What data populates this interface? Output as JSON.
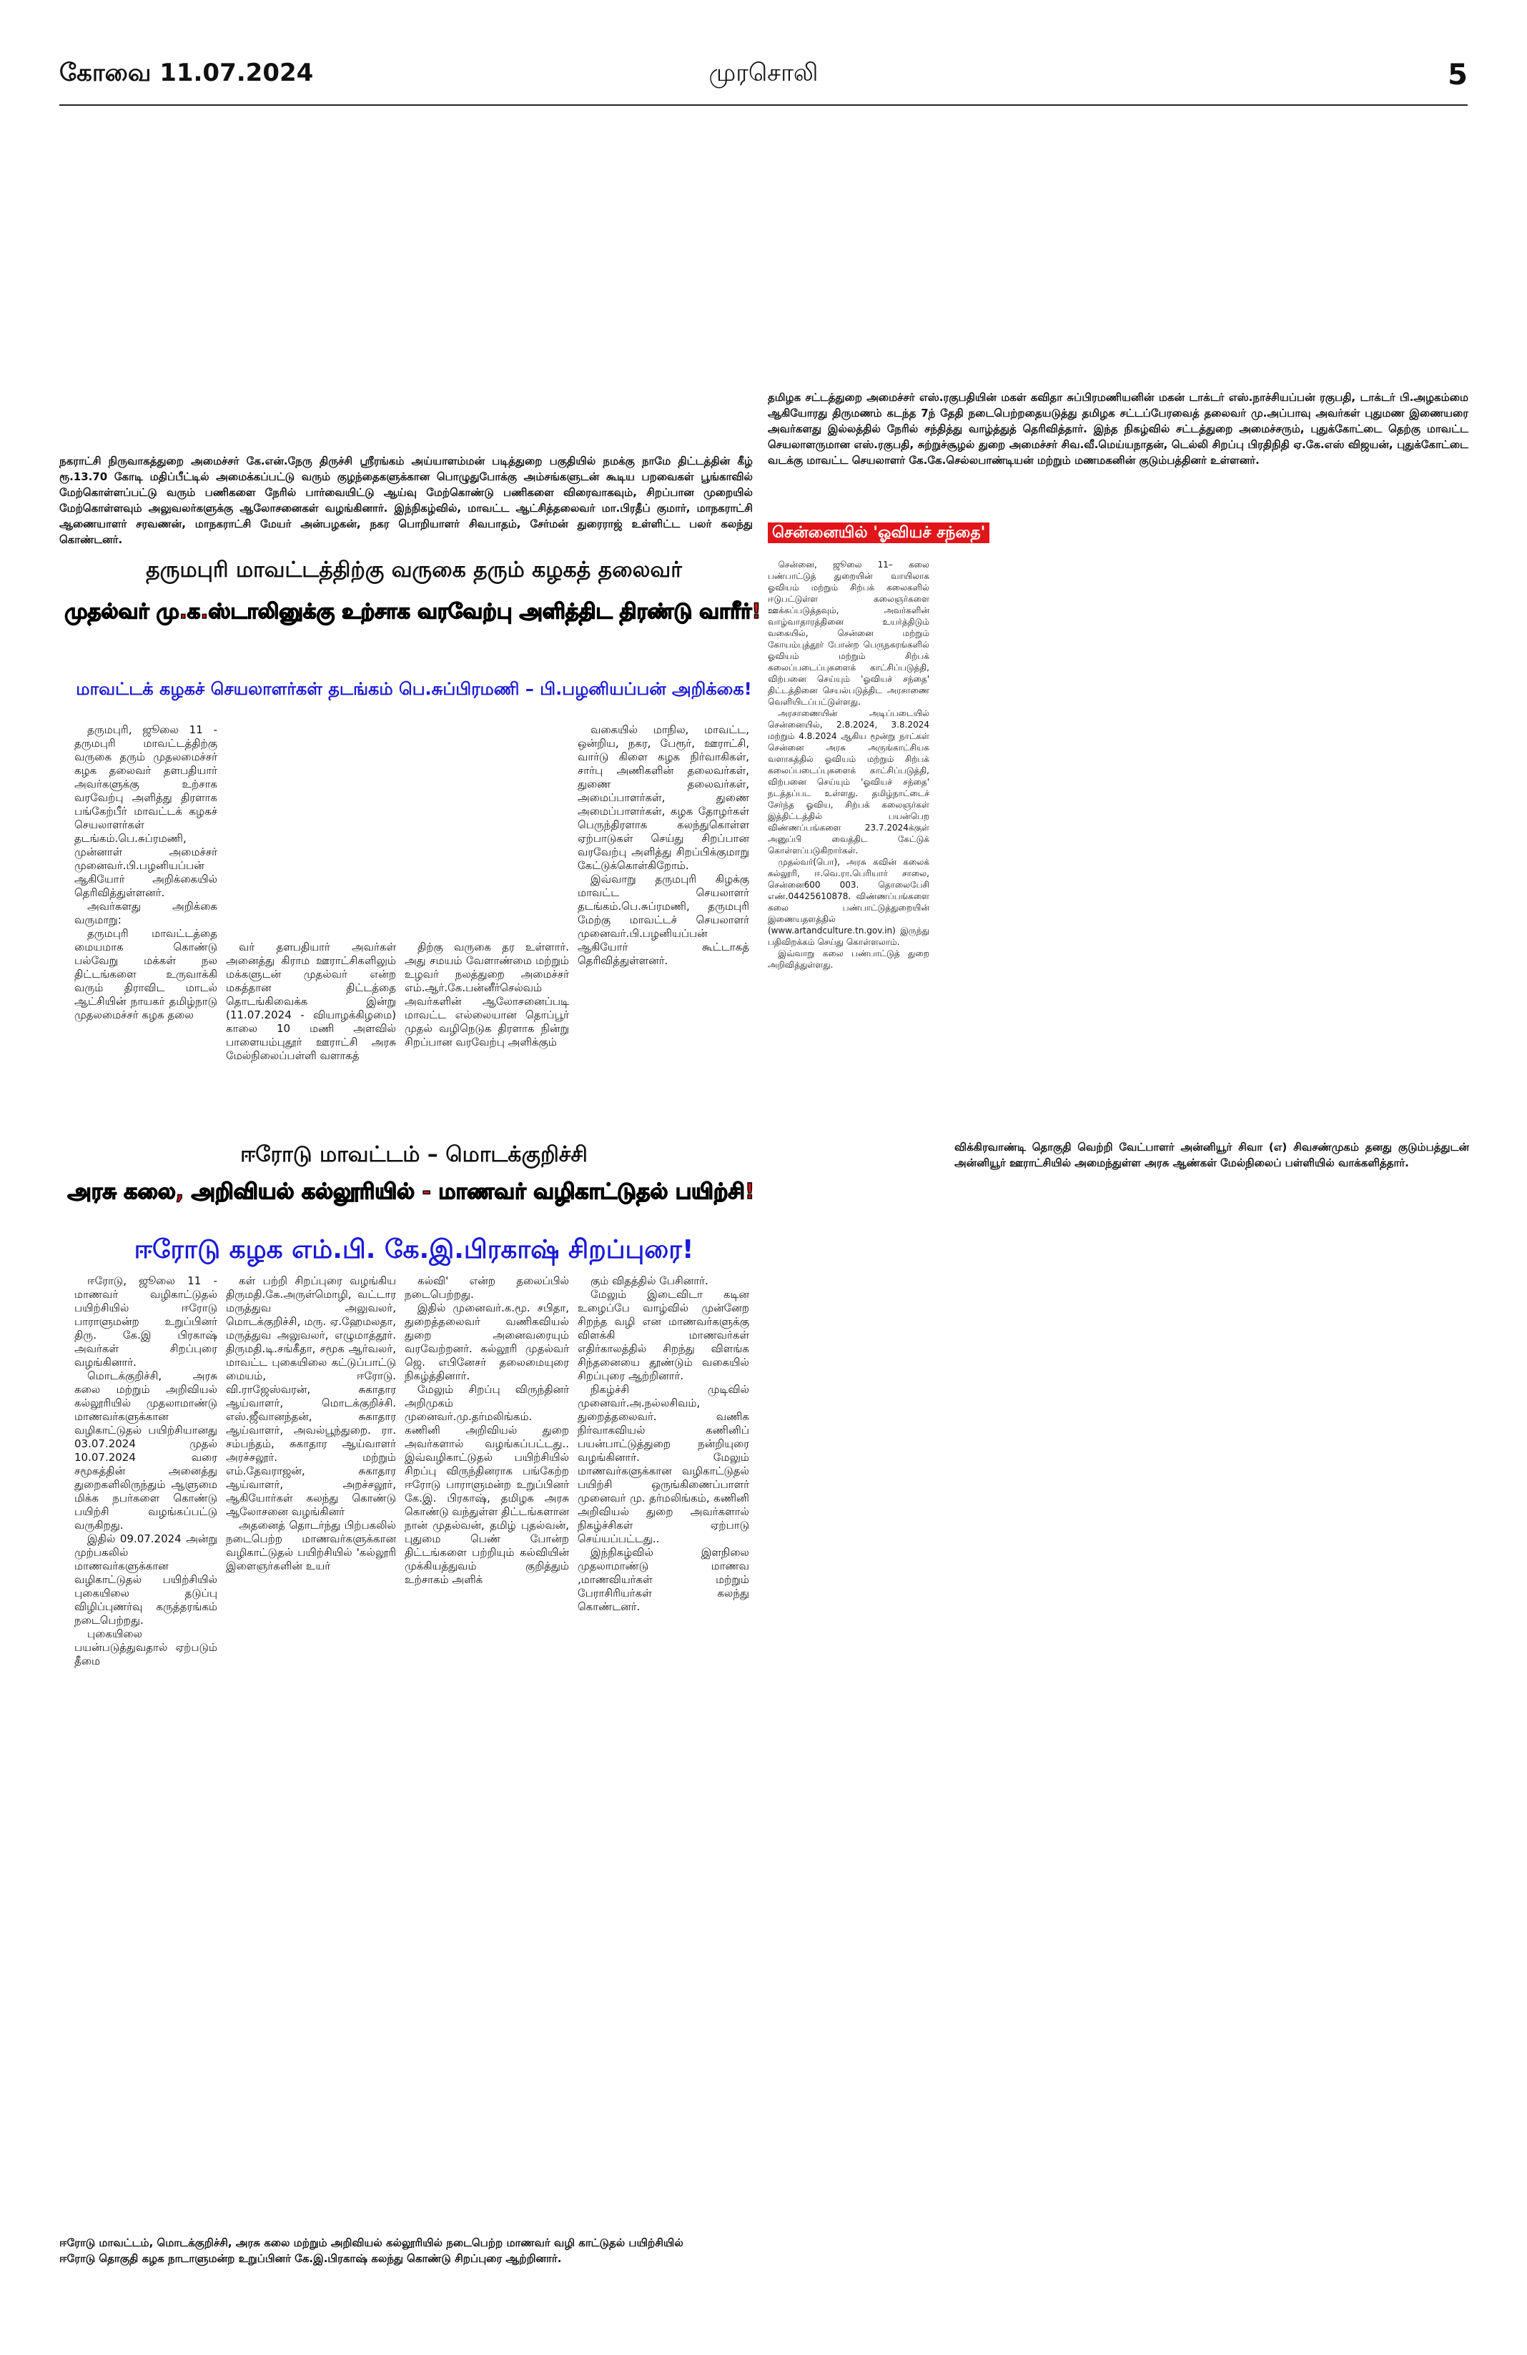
{
  "header": {
    "edition": "கோவை 11.07.2024",
    "paper": "முரசொலி",
    "page": "5"
  },
  "top_right_caption": "தமிழக சட்டத்துறை அமைச்சர் எஸ்.ரகுபதியின் மகள் கவிதா சுப்பிரமணியனின் மகன் டாக்டர் எஸ்.நாச்சியப்பன் ரகுபதி, டாக்டர் பி.அழகம்மை ஆகியோரது திருமணம் கடந்த 7ந் தேதி நடைபெற்றதையடுத்து தமிழக சட்டப்பேரவைத் தலைவர் மு.அப்பாவு அவர்கள் புதுமண இணையரை அவர்களது இல்லத்தில் நேரில் சந்தித்து வாழ்த்துத் தெரிவித்தார். இந்த நிகழ்வில் சட்டத்துறை அமைச்சரும், புதுக்கோட்டை தெற்கு மாவட்ட செயலாளருமான எஸ்.ரகுபதி, சுற்றுச்சூழல் துறை அமைச்சர் சிவ.வீ.மெய்யநாதன், டெல்லி சிறப்பு பிரதிநிதி ஏ.கே.எஸ் விஜயன், புதுக்கோட்டை வடக்கு மாவட்ட செயலாளர் கே.கே.செல்லபாண்டியன் மற்றும் மணமகனின் குடும்பத்தினர் உள்ளனர்.",
  "top_left_caption": "நகராட்சி நிருவாகத்துறை அமைச்சர் கே.என்.நேரு திருச்சி ஸ்ரீரங்கம் அய்யாளம்மன் படித்துறை பகுதியில் நமக்கு நாமே திட்டத்தின் கீழ் ரூ.13.70 கோடி மதிப்பீட்டில் அமைக்கப்பட்டு வரும் குழந்தைகளுக்கான பொழுதுபோக்கு அம்சங்களுடன் கூடிய பறவைகள் பூங்காவில் மேற்கொள்ளப்பட்டு வரும் பணிகளை நேரில் பார்வையிட்டு ஆய்வு மேற்கொண்டு பணிகளை விரைவாகவும், சிறப்பான முறையில் மேற்கொள்ளவும் அலுவலர்களுக்கு ஆலோசனைகள் வழங்கினார். இந்நிகழ்வில், மாவட்ட ஆட்சித்தலைவர் மா.பிரதீப் குமார், மாநகராட்சி ஆணையாளர் சரவணன், மாநகராட்சி மேயர் அன்பழகன், நகர பொறியாளர் சிவபாதம், சேர்மன் துரைராஜ் உள்ளிட்ட பலர் கலந்து கொண்டனர்.",
  "chennai": {
    "heading": "சென்னையில் 'ஓவியச் சந்தை'",
    "paragraphs": [
      "சென்னை, ஜூலை 11– கலை பண்பாட்டுத் துறையின் வாயிலாக ஓவியம் மற்றும் சிற்பக் கலைகளில் ஈடுபட்டுள்ள கலைஞர்களை ஊக்கப்படுத்தவும், அவர்களின் வாழ்வாதாரத்தினை உயர்த்திடும் வகையில், சென்னை மற்றும் கோயம்புத்தூர் போன்ற பெருநகரங்களில் ஓவியம் மற்றும் சிற்பக் கலைப்படைப்புகளைக் காட்சிப்படுத்தி, விற்பனை செய்யும் 'ஓவியச் சந்தை' திட்டத்தினை செயல்படுத்திட அரசாணை வெளியிடப்பட்டுள்ளது.",
      "அரசாணையின் அடிப்படையில் சென்னையில், 2.8.2024, 3.8.2024 மற்றும் 4.8.2024 ஆகிய மூன்று நாட்கள் சென்னை அரசு அருங்காட்சியக வளாகத்தில் ஓவியம் மற்றும் சிற்பக் கலைப்படைப்புகளைக் காட்சிப்படுத்தி, விற்பனை செய்யும் 'ஓவியச் சந்தை' நடத்தப்பட உள்ளது. தமிழ்நாட்டைச் சேர்ந்த ஓவிய, சிற்பக் கலைஞர்கள் இத்திட்டத்தில் பயன்பெற விண்ணப்பங்களை 23.7.2024க்குள் அனுப்பி வைத்திட கேட்டுக் கொள்ளப்படுகிறார்கள்.",
      "முதல்வர்(பொ), அரசு கவின் கலைக் கல்லூரி, ஈ.வெ.ரா.பெரியார் சாலை, சென்னை600 003. தொலைபேசி எண்.04425610878. விண்ணப்பங்களை கலை பண்பாட்டுத்துறையின் இணையதளத்தில் (www.artandculture.tn.gov.in) இருந்து பதிவிறக்கம் செய்து கொள்ளலாம்.",
      "இவ்வாறு கலை பண்பாட்டுத் துறை அறிவித்துள்ளது."
    ]
  },
  "article1": {
    "kicker": "தருமபுரி மாவட்டத்திற்கு வருகை தரும் கழகத் தலைவர்",
    "headline": "முதல்வர் மு.க.ஸ்டாலினுக்கு உற்சாக வரவேற்பு அளித்திட திரண்டு வாரீர்!",
    "subheadline": "மாவட்டக் கழகச் செயலாளர்கள் தடங்கம் பெ.சுப்பிரமணி – பி.பழனியப்பன் அறிக்கை!",
    "columns": [
      [
        "தருமபுரி, ஜூலை 11 - தருமபுரி மாவட்டத்திற்கு வருகை தரும் முதலமைச்சர் கழக தலைவர் தளபதியார் அவர்களுக்கு உற்சாக வரவேற்பு அளித்து திரளாக பங்கேற்பீர் மாவட்டக் கழகச் செயலாளர்கள் தடங்கம்.பெ.சுப்ரமணி, முன்னாள் அமைச்சர் முனைவர்.பி.பழனியப்பன் ஆகியோர் அறிக்கையில் தெரிவித்துள்ளனர்.",
        "அவர்களது அறிக்கை வருமாறு:",
        "தருமபுரி மாவட்டத்தை மையமாக கொண்டு பல்வேறு மக்கள் நல திட்டங்களை உருவாக்கி வரும் திராவிட மாடல் ஆட்சியின் நாயகர் தமிழ்நாடு முதலமைச்சர் கழக தலை"
      ],
      [
        "வர் தளபதியார் அவர்கள் அனைத்து கிராம ஊராட்சிகளிலும் மக்களுடன் முதல்வர் என்ற மகத்தான திட்டத்தை தொடங்கிவைக்க இன்று (11.07.2024 - வியாழக்கிழமை) காலை 10 மணி அளவில் பாளையம்புதூர் ஊராட்சி அரசு மேல்நிலைப்பள்ளி வளாகத்"
      ],
      [
        "திற்கு வருகை தர உள்ளார். அது சமயம் வேளாண்மை மற்றும் உழவர் நலத்துறை அமைச்சர் எம்.ஆர்.கே.பன்னீர்செல்வம் அவர்களின் ஆலோசனைப்படி மாவட்ட எல்லையான தொப்பூர் முதல் வழிநெடுக திரளாக நின்று சிறப்பான வரவேற்பு அளிக்கும்"
      ],
      [
        "வகையில் மாநில, மாவட்ட, ஒன்றிய, நகர, பேரூர், ஊராட்சி, வார்டு கிளை கழக நிர்வாகிகள், சார்பு அணிகளின் தலைவர்கள், துணை தலைவர்கள், அமைப்பாளர்கள், துணை அமைப்பாளர்கள், கழக தோழர்கள் பெருந்திரளாக கலந்துகொள்ள ஏற்பாடுகள் செய்து சிறப்பான வரவேற்பு அளித்து சிறப்பிக்குமாறு கேட்டுக்கொள்கிறோம்.",
        "இவ்வாறு தருமபுரி கிழக்கு மாவட்ட செயலாளர் தடங்கம்.பெ.சுப்ரமணி, தருமபுரி மேற்கு மாவட்டச் செயலாளர் முனைவர்.பி.பழனியப்பன் ஆகியோர் கூட்டாகத் தெரிவித்துள்ளனர்."
      ]
    ]
  },
  "article2": {
    "kicker": "ஈரோடு மாவட்டம் – மொடக்குறிச்சி",
    "headline": "அரசு கலை, அறிவியல் கல்லூரியில் - மாணவர் வழிகாட்டுதல் பயிற்சி!",
    "subheadline": "ஈரோடு கழக எம்.பி. கே.இ.பிரகாஷ் சிறப்புரை!",
    "columns": [
      [
        "ஈரோடு, ஜூலை 11 - மாணவர் வழிகாட்டுதல் பயிற்சியில் ஈரோடு பாராளுமன்ற உறுப்பினர் திரு. கே.இ பிரகாஷ் அவர்கள் சிறப்புரை வழங்கினார்.",
        "மொடக்குறிச்சி, அரசு கலை மற்றும் அறிவியல் கல்லூரியில் முதலாமாண்டு மாணவர்களுக்கான வழிகாட்டுதல் பயிற்சியானது 03.07.2024 முதல் 10.07.2024 வரை சமூகத்தின் அனைத்து துறைகளிலிருந்தும் ஆளுமை மிக்க நபர்களை கொண்டு பயிற்சி வழங்கப்பட்டு வருகிறது.",
        "இதில் 09.07.2024 அன்று முற்பகலில் மாணவர்களுக்கான வழிகாட்டுதல் பயிற்சியில் புகையிலை தடுப்பு விழிப்புணர்வு கருத்தரங்கம் நடைபெற்றது.",
        "புகையிலை பயன்படுத்துவதால் ஏற்படும் தீமை"
      ],
      [
        "கள் பற்றி சிறப்புரை வழங்கிய திருமதி.கே.அருள்மொழி, வட்டார மருத்துவ அலுவலர், மொடக்குறிச்சி, மரு. ஏ.ஹேமலதா, மருத்துவ அலுவலர், எழுமாத்தூர். திருமதி.டி.சங்கீதா, சமூக ஆர்வலர், மாவட்ட புகையிலை கட்டுப்பாட்டு மையம், ஈரோடு. வி.ராஜேஸ்வரன், சுகாதார ஆய்வாளர், மொடக்குறிச்சி. எஸ்.ஜீவானந்தன், சுகாதார ஆய்வாளர், அவல்பூந்துறை. ரா. சம்பந்தம், சுகாதார ஆய்வாளர் அரச்சலூர். மற்றும் எம்.தேவராஜன், சுகாதார ஆய்வாளர், அறச்சலூர், ஆகியோர்கள் கலந்து கொண்டு ஆலோசனை வழங்கினர்",
        "அதனைத் தொடர்ந்து பிற்பகலில் நடைபெற்ற மாணவர்களுக்கான வழிகாட்டுதல் பயிற்சியில் 'கல்லூரி இளைஞர்களின் உயர்"
      ],
      [
        "கல்வி' என்ற தலைப்பில் நடைபெற்றது.",
        "இதில் முனைவர்.க.மூ. சபிதா, துறைத்தலைவர் வணிகவியல் துறை அனைவரையும் வரவேற்றனர். கல்லூரி முதல்வர் ஜெ. எபினேசர் தலைமையுரை நிகழ்த்தினார்.",
        "மேலும் சிறப்பு விருந்தினர் அறிமுகம் முனைவர்.மு.தர்மலிங்கம். கணினி அறிவியல் துறை அவர்களால் வழங்கப்பட்டது.. இவ்வழிகாட்டுதல் பயிற்சியில் சிறப்பு விருந்தினராக பங்கேற்ற ஈரோடு பாராளுமன்ற உறுப்பினர் கே.இ. பிரகாஷ், தமிழக அரசு கொண்டு வந்துள்ள திட்டங்களான நான் முதல்வன், தமிழ் புதல்வன், புதுமை பெண் போன்ற திட்டங்களை பற்றியும் கல்வியின் முக்கியத்துவம் குறித்தும் உற்சாகம் அளிக்"
      ],
      [
        "கும் விதத்தில் பேசினார்.",
        "மேலும் இடைவிடா கடின உழைப்பே வாழ்வில் முன்னேற சிறந்த வழி என மாணவர்களுக்கு விளக்கி மாணவர்கள் எதிர்காலத்தில் சிறந்து விளங்க சிந்தனையை தூண்டும் வகையில் சிறப்புரை ஆற்றினார்.",
        "நிகழ்ச்சி முடிவில் முனைவர்.அ.நல்லசிவம், துறைத்தலைவர். வணிக நிர்வாகவியல் கணினிப் பயன்பாட்டுத்துறை நன்றியுரை வழங்கினார். மேலும் மாணவர்களுக்கான வழிகாட்டுதல் பயிற்சி ஒருங்கிணைப்பாளர் முனைவர் மு. தர்மலிங்கம், கணினி அறிவியல் துறை அவர்களால் நிகழ்ச்சிகள் ஏற்பாடு செய்யப்பட்டது..",
        "இந்நிகழ்வில் இளநிலை முதலாமாண்டு மாணவ ,மாணவியர்கள் மற்றும் பேராசிரியர்கள் கலந்து கொண்டனர்."
      ]
    ]
  },
  "right_caption": "விக்கிரவாண்டி தொகுதி வெற்றி வேட்பாளர் அன்னியூர் சிவா (எ) சிவசண்முகம் தனது குடும்பத்துடன் அன்னியூர் ஊராட்சியில் அமைந்துள்ள அரசு ஆண்கள் மேல்நிலைப் பள்ளியில் வாக்களித்தார்.",
  "bottom_caption": [
    "ஈரோடு மாவட்டம், மொடக்குறிச்சி, அரசு கலை மற்றும் அறிவியல் கல்லூரியில் நடைபெற்ற மாணவர் வழி காட்டுதல் பயிற்சியில்",
    "ஈரோடு தொகுதி கழக நாடாளுமன்ற உறுப்பினர் கே.இ.பிரகாஷ் கலந்து கொண்டு சிறப்புரை ஆற்றினார்."
  ]
}
